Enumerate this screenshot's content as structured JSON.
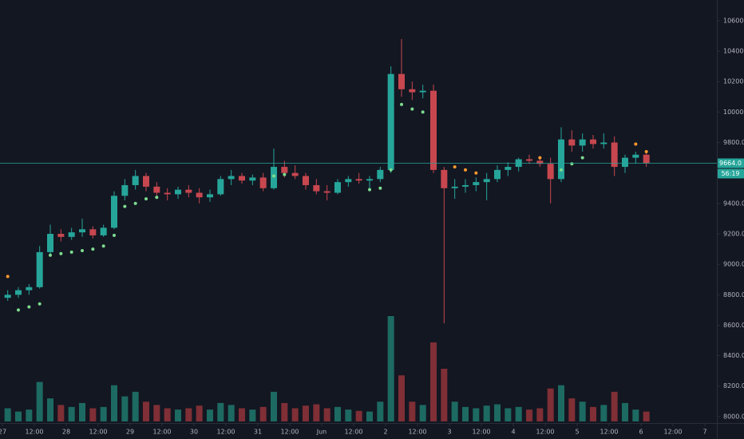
{
  "chart_data": {
    "type": "candlestick",
    "x": [
      2,
      6,
      10,
      14,
      18,
      22,
      26,
      30,
      34,
      38,
      42,
      46,
      50,
      54,
      58,
      62,
      66,
      70,
      74,
      78,
      82,
      86,
      90,
      94,
      98,
      102,
      106,
      110,
      114,
      118,
      122,
      126,
      130,
      134,
      138,
      142,
      146,
      150,
      154,
      158,
      162,
      166,
      170,
      174,
      178,
      182,
      186,
      190,
      194,
      198,
      202,
      206,
      210,
      214,
      218,
      222,
      226,
      230,
      234,
      238,
      242
    ],
    "open": [
      8780,
      8800,
      8830,
      8850,
      9080,
      9200,
      9180,
      9210,
      9230,
      9190,
      9240,
      9450,
      9520,
      9580,
      9510,
      9470,
      9460,
      9490,
      9470,
      9440,
      9460,
      9560,
      9580,
      9550,
      9570,
      9500,
      9640,
      9600,
      9580,
      9520,
      9480,
      9470,
      9540,
      9560,
      9550,
      9560,
      9620,
      10250,
      10150,
      10130,
      10140,
      9620,
      9500,
      9510,
      9520,
      9540,
      9560,
      9620,
      9640,
      9690,
      9680,
      9660,
      9560,
      9820,
      9780,
      9820,
      9790,
      9800,
      9640,
      9700,
      9720
    ],
    "high": [
      8830,
      8850,
      8870,
      9120,
      9260,
      9230,
      9240,
      9300,
      9250,
      9260,
      9480,
      9560,
      9620,
      9600,
      9540,
      9500,
      9510,
      9520,
      9500,
      9490,
      9580,
      9620,
      9600,
      9590,
      9600,
      9760,
      9680,
      9650,
      9600,
      9560,
      9520,
      9560,
      9580,
      9600,
      9580,
      9640,
      10300,
      10480,
      10200,
      10180,
      10180,
      9640,
      9560,
      9560,
      9570,
      9600,
      9650,
      9670,
      9700,
      9720,
      9700,
      9700,
      9900,
      9880,
      9860,
      9850,
      9860,
      9840,
      9720,
      9740,
      9740
    ],
    "low": [
      8760,
      8780,
      8800,
      8840,
      9060,
      9150,
      9160,
      9180,
      9170,
      9180,
      9230,
      9420,
      9490,
      9480,
      9440,
      9420,
      9430,
      9440,
      9400,
      9410,
      9450,
      9520,
      9530,
      9520,
      9480,
      9490,
      9570,
      9560,
      9490,
      9460,
      9420,
      9460,
      9510,
      9530,
      9500,
      9540,
      9600,
      10100,
      10080,
      10090,
      9600,
      8613,
      9430,
      9470,
      9480,
      9420,
      9540,
      9580,
      9610,
      9660,
      9640,
      9400,
      9540,
      9740,
      9740,
      9760,
      9760,
      9580,
      9600,
      9660,
      9640
    ],
    "close": [
      8800,
      8830,
      8850,
      9080,
      9200,
      9180,
      9210,
      9230,
      9190,
      9240,
      9450,
      9520,
      9580,
      9510,
      9470,
      9460,
      9490,
      9470,
      9440,
      9460,
      9560,
      9580,
      9550,
      9570,
      9500,
      9640,
      9600,
      9580,
      9520,
      9480,
      9470,
      9540,
      9560,
      9550,
      9560,
      9620,
      10250,
      10150,
      10130,
      10140,
      9620,
      9500,
      9510,
      9520,
      9540,
      9560,
      9620,
      9640,
      9690,
      9680,
      9660,
      9560,
      9820,
      9780,
      9820,
      9790,
      9800,
      9640,
      9700,
      9720,
      9664
    ],
    "volume": [
      20,
      15,
      18,
      60,
      35,
      25,
      22,
      28,
      20,
      22,
      55,
      38,
      45,
      30,
      25,
      20,
      18,
      20,
      24,
      18,
      28,
      25,
      20,
      18,
      22,
      45,
      28,
      20,
      24,
      26,
      20,
      22,
      18,
      16,
      15,
      30,
      160,
      70,
      30,
      25,
      120,
      80,
      30,
      22,
      20,
      24,
      26,
      20,
      22,
      18,
      20,
      50,
      55,
      35,
      30,
      22,
      25,
      45,
      28,
      18,
      15
    ],
    "sar": [
      8920,
      8700,
      8720,
      8740,
      9060,
      9070,
      9080,
      9090,
      9100,
      9120,
      9190,
      9380,
      9400,
      9430,
      9440,
      null,
      null,
      null,
      null,
      null,
      null,
      null,
      null,
      null,
      null,
      9580,
      9590,
      null,
      null,
      null,
      null,
      null,
      null,
      null,
      9490,
      9500,
      9620,
      10050,
      10020,
      10000,
      null,
      null,
      9640,
      9620,
      9600,
      null,
      null,
      null,
      null,
      null,
      9700,
      null,
      9620,
      9660,
      9700,
      null,
      null,
      null,
      null,
      9790,
      9740
    ],
    "up_color": "#26a69a",
    "down_color": "#c8474f",
    "volume_up_color": "#1d6a62",
    "volume_down_color": "#7f2f35",
    "sar_below_color": "#7ddc8e",
    "sar_above_color": "#ff9a2e",
    "xlim": [
      -0.9,
      268.5
    ],
    "ylim": [
      7968,
      10736
    ],
    "volume_lim": [
      0,
      640
    ],
    "grid": false,
    "xticks": [
      {
        "value": 0,
        "label": "27"
      },
      {
        "value": 12,
        "label": "12:00"
      },
      {
        "value": 24,
        "label": "28"
      },
      {
        "value": 36,
        "label": "12:00"
      },
      {
        "value": 48,
        "label": "29"
      },
      {
        "value": 60,
        "label": "12:00"
      },
      {
        "value": 72,
        "label": "30"
      },
      {
        "value": 84,
        "label": "12:00"
      },
      {
        "value": 96,
        "label": "31"
      },
      {
        "value": 108,
        "label": "12:00"
      },
      {
        "value": 120,
        "label": "Jun"
      },
      {
        "value": 132,
        "label": "12:00"
      },
      {
        "value": 144,
        "label": "2"
      },
      {
        "value": 156,
        "label": "12:00"
      },
      {
        "value": 168,
        "label": "3"
      },
      {
        "value": 180,
        "label": "12:00"
      },
      {
        "value": 192,
        "label": "4"
      },
      {
        "value": 204,
        "label": "12:00"
      },
      {
        "value": 216,
        "label": "5"
      },
      {
        "value": 228,
        "label": "12:00"
      },
      {
        "value": 240,
        "label": "6"
      },
      {
        "value": 252,
        "label": "12:00"
      },
      {
        "value": 264,
        "label": "7"
      }
    ],
    "yticks": [
      {
        "value": 8000,
        "label": "8000.0"
      },
      {
        "value": 8200,
        "label": "8200.0"
      },
      {
        "value": 8400,
        "label": "8400.0"
      },
      {
        "value": 8600,
        "label": "8600.0"
      },
      {
        "value": 8800,
        "label": "8800.0"
      },
      {
        "value": 9000,
        "label": "9000.0"
      },
      {
        "value": 9200,
        "label": "9200.0"
      },
      {
        "value": 9400,
        "label": "9400.0"
      },
      {
        "value": 9600,
        "label": "9600.0"
      },
      {
        "value": 9800,
        "label": "9800.0"
      },
      {
        "value": 10000,
        "label": "10000.0"
      },
      {
        "value": 10200,
        "label": "10200.0"
      },
      {
        "value": 10400,
        "label": "10400.0"
      },
      {
        "value": 10600,
        "label": "10600.0"
      }
    ],
    "last_price": {
      "value": 9664,
      "label": "9664.0"
    },
    "countdown": "56:19"
  }
}
